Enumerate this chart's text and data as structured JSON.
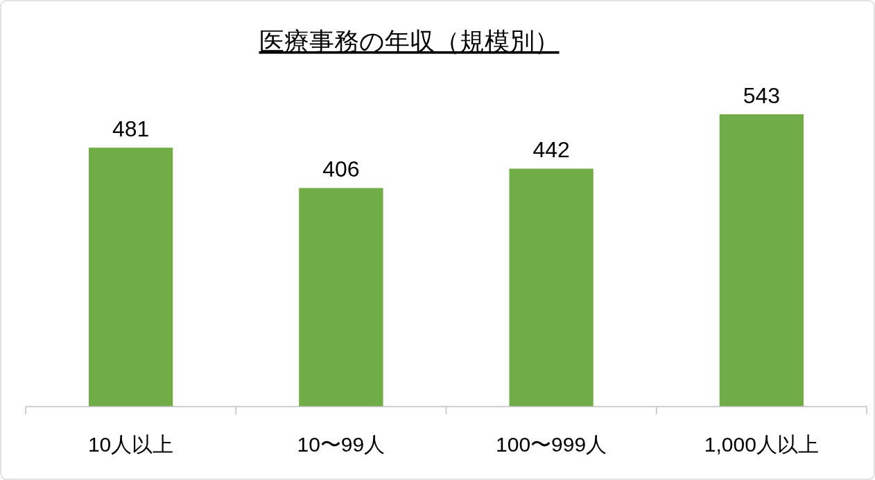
{
  "chart_data": {
    "type": "bar",
    "title": "医療事務の年収（規模別）",
    "categories": [
      "10人以上",
      "10〜99人",
      "100〜999人",
      "1,000人以上"
    ],
    "values": [
      481,
      406,
      442,
      543
    ],
    "color": "#70ad47",
    "data_labels": true
  }
}
